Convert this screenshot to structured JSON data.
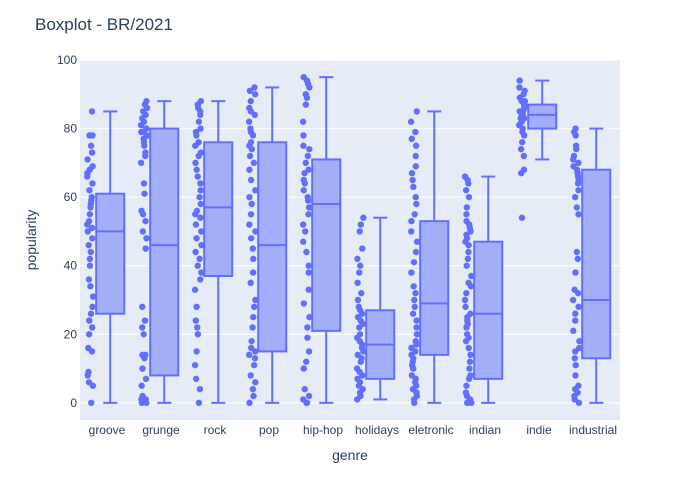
{
  "chart_data": {
    "type": "box",
    "title": "Boxplot - BR/2021",
    "xlabel": "genre",
    "ylabel": "popularity",
    "ylim": [
      -5,
      100
    ],
    "yticks": [
      0,
      20,
      40,
      60,
      80,
      100
    ],
    "grid": true,
    "colors": {
      "plot_bg": "#e5ecf6",
      "box_fill": "#a3aef9",
      "box_line": "#636efa",
      "text": "#2a3f5f",
      "grid": "#ffffff"
    },
    "categories": [
      "groove",
      "grunge",
      "rock",
      "pop",
      "hip-hop",
      "holidays",
      "eletronic",
      "indian",
      "indie",
      "industrial"
    ],
    "boxes": [
      {
        "category": "groove",
        "min": 0,
        "q1": 26,
        "median": 50,
        "q3": 61,
        "max": 85,
        "points": [
          0,
          5,
          6,
          8,
          9,
          15,
          16,
          20,
          22,
          24,
          26,
          28,
          31,
          34,
          36,
          40,
          42,
          44,
          46,
          48,
          50,
          51,
          52,
          53,
          55,
          57,
          58,
          59,
          60,
          62,
          64,
          66,
          67,
          68,
          69,
          71,
          73,
          75,
          78,
          78,
          85
        ]
      },
      {
        "category": "grunge",
        "min": 0,
        "q1": 8,
        "median": 46,
        "q3": 80,
        "max": 88,
        "points": [
          0,
          0,
          1,
          1,
          2,
          5,
          7,
          10,
          13,
          14,
          14,
          20,
          22,
          24,
          28,
          45,
          48,
          50,
          53,
          55,
          56,
          61,
          64,
          70,
          72,
          73,
          75,
          76,
          77,
          78,
          79,
          79,
          80,
          80,
          81,
          82,
          83,
          84,
          85,
          86,
          87,
          88
        ]
      },
      {
        "category": "rock",
        "min": 0,
        "q1": 37,
        "median": 57,
        "q3": 76,
        "max": 88,
        "points": [
          0,
          4,
          7,
          11,
          15,
          20,
          22,
          24,
          28,
          33,
          36,
          38,
          40,
          42,
          44,
          46,
          48,
          50,
          52,
          54,
          55,
          56,
          58,
          60,
          62,
          64,
          66,
          68,
          70,
          72,
          73,
          75,
          76,
          78,
          79,
          80,
          82,
          84,
          85,
          86,
          87,
          88
        ]
      },
      {
        "category": "pop",
        "min": 0,
        "q1": 15,
        "median": 46,
        "q3": 76,
        "max": 92,
        "points": [
          0,
          2,
          4,
          6,
          8,
          11,
          13,
          14,
          15,
          16,
          18,
          22,
          25,
          28,
          30,
          35,
          38,
          42,
          45,
          48,
          50,
          52,
          55,
          58,
          60,
          62,
          65,
          68,
          70,
          72,
          74,
          75,
          76,
          78,
          79,
          80,
          82,
          84,
          85,
          86,
          88,
          90,
          91,
          92
        ]
      },
      {
        "category": "hip-hop",
        "min": 0,
        "q1": 21,
        "median": 58,
        "q3": 71,
        "max": 95,
        "points": [
          0,
          0,
          1,
          2,
          4,
          10,
          12,
          15,
          19,
          22,
          25,
          29,
          33,
          38,
          40,
          44,
          47,
          50,
          52,
          55,
          57,
          59,
          60,
          62,
          64,
          65,
          67,
          68,
          70,
          72,
          74,
          75,
          78,
          82,
          87,
          89,
          90,
          92,
          93,
          94,
          95
        ]
      },
      {
        "category": "holidays",
        "min": 1,
        "q1": 7,
        "median": 17,
        "q3": 27,
        "max": 54,
        "points": [
          1,
          2,
          3,
          4,
          5,
          6,
          7,
          8,
          9,
          10,
          12,
          13,
          14,
          15,
          16,
          17,
          18,
          19,
          20,
          22,
          23,
          24,
          25,
          26,
          27,
          28,
          30,
          32,
          35,
          38,
          40,
          42,
          45,
          50,
          52,
          54
        ]
      },
      {
        "category": "eletronic",
        "min": 0,
        "q1": 14,
        "median": 29,
        "q3": 53,
        "max": 85,
        "points": [
          0,
          1,
          2,
          3,
          4,
          5,
          6,
          7,
          8,
          10,
          11,
          12,
          13,
          14,
          15,
          16,
          17,
          18,
          20,
          22,
          24,
          26,
          28,
          30,
          32,
          34,
          38,
          41,
          44,
          47,
          50,
          53,
          55,
          58,
          60,
          63,
          65,
          67,
          69,
          72,
          75,
          77,
          79,
          82,
          85
        ]
      },
      {
        "category": "indian",
        "min": 0,
        "q1": 7,
        "median": 26,
        "q3": 47,
        "max": 66,
        "points": [
          0,
          0,
          0,
          1,
          2,
          3,
          5,
          7,
          8,
          10,
          12,
          14,
          16,
          18,
          19,
          20,
          22,
          23,
          24,
          25,
          26,
          28,
          30,
          32,
          34,
          35,
          37,
          40,
          42,
          44,
          46,
          47,
          48,
          49,
          50,
          51,
          52,
          53,
          55,
          57,
          60,
          62,
          64,
          65,
          66
        ]
      },
      {
        "category": "indie",
        "min": 71,
        "q1": 80,
        "median": 84,
        "q3": 87,
        "max": 94,
        "points": [
          54,
          67,
          68,
          72,
          74,
          76,
          78,
          79,
          80,
          81,
          82,
          82,
          83,
          83,
          84,
          84,
          85,
          85,
          86,
          86,
          87,
          87,
          88,
          88,
          89,
          90,
          91,
          92,
          94
        ]
      },
      {
        "category": "industrial",
        "min": 0,
        "q1": 13,
        "median": 30,
        "q3": 68,
        "max": 80,
        "points": [
          0,
          1,
          2,
          3,
          4,
          5,
          8,
          11,
          13,
          15,
          16,
          18,
          21,
          24,
          26,
          28,
          30,
          32,
          33,
          38,
          42,
          44,
          55,
          57,
          60,
          62,
          64,
          65,
          66,
          67,
          68,
          69,
          70,
          71,
          72,
          74,
          75,
          78,
          79,
          80
        ]
      }
    ]
  }
}
